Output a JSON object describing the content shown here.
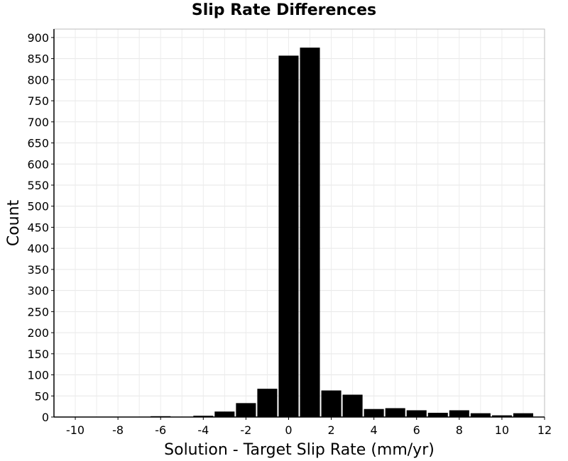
{
  "chart_data": {
    "type": "bar",
    "title": "Slip Rate Differences",
    "xlabel": "Solution - Target Slip Rate (mm/yr)",
    "ylabel": "Count",
    "xlim": [
      -11,
      12
    ],
    "ylim": [
      0,
      920
    ],
    "xticks": [
      -10,
      -8,
      -6,
      -4,
      -2,
      0,
      2,
      4,
      6,
      8,
      10,
      12
    ],
    "yticks": [
      0,
      50,
      100,
      150,
      200,
      250,
      300,
      350,
      400,
      450,
      500,
      550,
      600,
      650,
      700,
      750,
      800,
      850,
      900
    ],
    "bin_width": 1,
    "bins": [
      {
        "x": -10,
        "count": 0
      },
      {
        "x": -9,
        "count": 0
      },
      {
        "x": -8,
        "count": 0
      },
      {
        "x": -7,
        "count": 0
      },
      {
        "x": -6,
        "count": 2
      },
      {
        "x": -5,
        "count": 0
      },
      {
        "x": -4,
        "count": 3
      },
      {
        "x": -3,
        "count": 13
      },
      {
        "x": -2,
        "count": 33
      },
      {
        "x": -1,
        "count": 67
      },
      {
        "x": 0,
        "count": 857
      },
      {
        "x": 1,
        "count": 876
      },
      {
        "x": 2,
        "count": 63
      },
      {
        "x": 3,
        "count": 53
      },
      {
        "x": 4,
        "count": 19
      },
      {
        "x": 5,
        "count": 21
      },
      {
        "x": 6,
        "count": 16
      },
      {
        "x": 7,
        "count": 10
      },
      {
        "x": 8,
        "count": 16
      },
      {
        "x": 9,
        "count": 9
      },
      {
        "x": 10,
        "count": 4
      },
      {
        "x": 11,
        "count": 9
      }
    ],
    "bar_color": "#000000",
    "grid": true,
    "legend": "none"
  }
}
